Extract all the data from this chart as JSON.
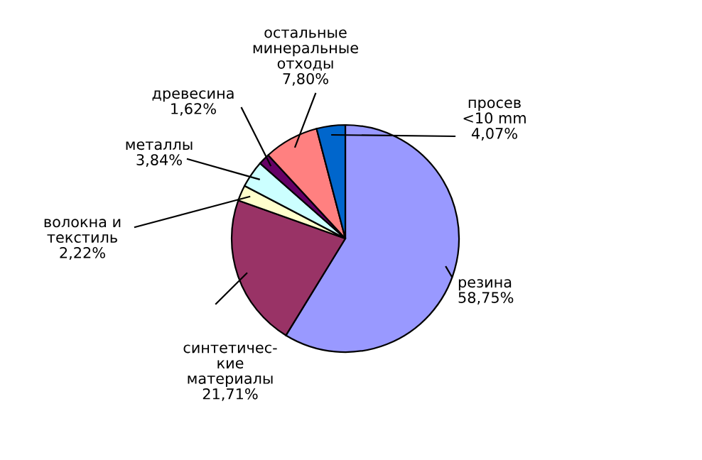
{
  "chart_data": {
    "type": "pie",
    "categories": [
      "резина",
      "синтетичес-\nкие\nматериалы",
      "волокна и\nтекстиль",
      "металлы",
      "древесина",
      "остальные\nминеральные\nотходы",
      "просев\n<10 mm"
    ],
    "values": [
      58.75,
      21.71,
      2.22,
      3.84,
      1.62,
      7.8,
      4.07
    ],
    "value_labels": [
      "58,75%",
      "21,71%",
      "2,22%",
      "3,84%",
      "1,62%",
      "7,80%",
      "4,07%"
    ],
    "colors": [
      "#9999ff",
      "#993366",
      "#ffffcc",
      "#ccffff",
      "#660066",
      "#ff8080",
      "#0066cc"
    ],
    "legend": false
  }
}
